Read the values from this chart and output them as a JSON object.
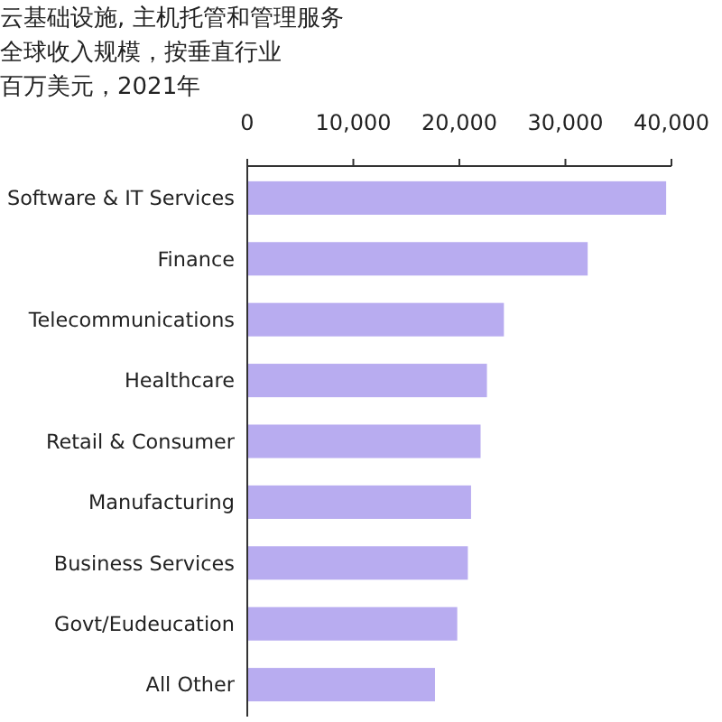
{
  "chart_data": {
    "type": "bar",
    "orientation": "horizontal",
    "title": "云基础设施, 主机托管和管理服务",
    "subtitle": "全球收入规模，按垂直行业",
    "xlabel": "百万美元，2021年",
    "categories": [
      "Software & IT Services",
      "Finance",
      "Telecommunications",
      "Healthcare",
      "Retail & Consumer",
      "Manufacturing",
      "Business Services",
      "Govt/Eudeucation",
      "All Other"
    ],
    "values": [
      39500,
      32100,
      24200,
      22600,
      22000,
      21100,
      20800,
      19800,
      17700
    ],
    "color": "#b8acf0",
    "xlim": [
      0,
      40000
    ],
    "xticks": [
      {
        "value": 0,
        "label": "0"
      },
      {
        "value": 10000,
        "label": "10,000"
      },
      {
        "value": 20000,
        "label": "20,000"
      },
      {
        "value": 30000,
        "label": "30,000"
      },
      {
        "value": 40000,
        "label": "40,000"
      }
    ],
    "grid": false
  }
}
